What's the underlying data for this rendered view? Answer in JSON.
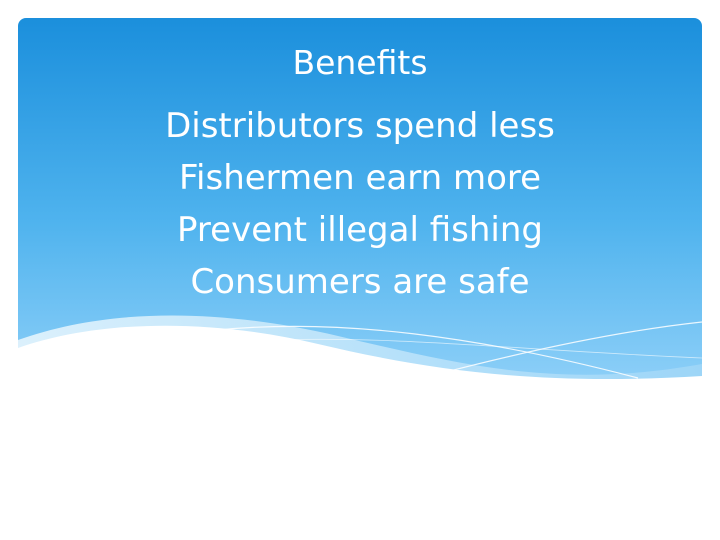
{
  "slide": {
    "title": "Benefits",
    "bullets": [
      "Distributors spend less",
      "Fishermen earn more",
      "Prevent illegal fishing",
      "Consumers are safe"
    ]
  },
  "colors": {
    "sky_top": "#1b8fdc",
    "sky_bottom": "#8fd0f8",
    "wave_light": "#c7e8fb",
    "text": "#ffffff",
    "background": "#ffffff"
  }
}
